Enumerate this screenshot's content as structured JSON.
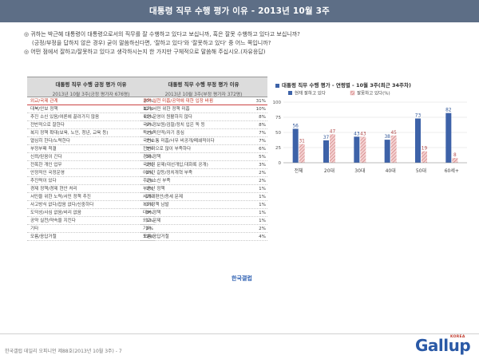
{
  "title": "대통령 직무 수행 평가 이유 - 2013년 10월 3주",
  "question": {
    "line1": "◎ 귀하는 박근혜 대통령이 대통령으로서의 직무를 잘 수행하고 있다고 보십니까, 혹은 잘못 수행하고 있다고 보십니까?",
    "line2": "(긍정/부정을 답하지 않은 경우) 굳이 말씀하신다면, '잘하고 있다'와 '잘못하고 있다' 중 어느 쪽입니까?",
    "line3": "◎ 어떤 점에서 잘하고/잘못하고 있다고 생각하시는지 한 가지만 구체적으로 말씀해 주십시오.(자유응답)"
  },
  "positive": {
    "header": "대통령 직무 수행 긍정 평가 이유",
    "sub": "2013년 10월 3주(긍정 평가자 676명)",
    "rows": [
      {
        "label": "외교/국제 관계",
        "pct": "20%"
      },
      {
        "label": "대북/안보 정책",
        "pct": "12%"
      },
      {
        "label": "추진 소신 있음/여론에 끌려가지 않음",
        "pct": "11%"
      },
      {
        "label": "전반적으로 잘한다",
        "pct": "9%"
      },
      {
        "label": "복지 정책 확대(보육, 노인, 청년, 교육 등)",
        "pct": "7%"
      },
      {
        "label": "열심히 한다/노력한다",
        "pct": "7%"
      },
      {
        "label": "부정부패 척결",
        "pct": "3%"
      },
      {
        "label": "신뢰/믿음이 간다",
        "pct": "3%"
      },
      {
        "label": "전폭한 개인 업무",
        "pct": "2%"
      },
      {
        "label": "안정적인 국정운영",
        "pct": "2%"
      },
      {
        "label": "추진력이 있다",
        "pct": "2%"
      },
      {
        "label": "경제 정책/경제 현안 처리",
        "pct": "2%"
      },
      {
        "label": "서민을 위한 노력/서민 정책 추진",
        "pct": "2%"
      },
      {
        "label": "사고방식 없다/잡음 없다/신중하다",
        "pct": "1%"
      },
      {
        "label": "도덕성/사심 없음/비리 없음",
        "pct": "1%"
      },
      {
        "label": "공약 실천/약속을 지킨다",
        "pct": "1%"
      },
      {
        "label": "기타",
        "pct": "2%"
      },
      {
        "label": "모름/응답거절",
        "pct": "12%"
      }
    ]
  },
  "negative": {
    "header": "대통령 직무 수행 부정 평가 이유",
    "sub": "2013년 10월 3주(부정 평가자 372명)",
    "rows": [
      {
        "label": "공약 실천 미흡/공약에 대한 입장 바뀜",
        "pct": "31%"
      },
      {
        "label": "복지/서민 위한 정책 미흡",
        "pct": "10%"
      },
      {
        "label": "국정 운영이 원활하지 않다",
        "pct": "8%"
      },
      {
        "label": "국가 정보원/검찰/정치 입은 독 등",
        "pct": "8%"
      },
      {
        "label": "독선/독단적/자기 중심",
        "pct": "7%"
      },
      {
        "label": "국민소통 미흡/너무 비공개/폐쇄적이다",
        "pct": "7%"
      },
      {
        "label": "전반적으로 많이 부족하다",
        "pct": "6%"
      },
      {
        "label": "경제 정책",
        "pct": "5%"
      },
      {
        "label": "국정원 문제(대선개입,대화록 공개)",
        "pct": "3%"
      },
      {
        "label": "여야간 갈등/정치개혁 부족",
        "pct": "2%"
      },
      {
        "label": "주관/소신 부족",
        "pct": "2%"
      },
      {
        "label": "부동산 정책",
        "pct": "1%"
      },
      {
        "label": "세계개편안/증세 문제",
        "pct": "1%"
      },
      {
        "label": "복지정책 남발",
        "pct": "1%"
      },
      {
        "label": "대북 정책",
        "pct": "1%"
      },
      {
        "label": "외교 문제",
        "pct": "1%"
      },
      {
        "label": "기타",
        "pct": "2%"
      },
      {
        "label": "모름/응답거절",
        "pct": "4%"
      }
    ]
  },
  "brand_small": "한국갤럽",
  "footer": "한국갤럽 데일리 오피니언 제88호(2013년 10월 3주) - 7",
  "logo": {
    "text": "Gallup",
    "korea": "KOREA"
  },
  "chart_data": {
    "type": "bar",
    "title": "대통령 직무 수행 평가 - 연령별 - 10월 3주(최근 34주차)",
    "categories": [
      "전체",
      "20대",
      "30대",
      "40대",
      "50대",
      "60세+"
    ],
    "series": [
      {
        "name": "현재 잘하고 있다",
        "values": [
          56,
          37,
          43,
          38,
          73,
          82
        ],
        "color": "#3d62a8"
      },
      {
        "name": "잘못하고 있다(%)",
        "values": [
          31,
          47,
          43,
          45,
          19,
          8
        ],
        "color": "#d88888"
      }
    ],
    "ylim": [
      0,
      100
    ],
    "yticks": [
      0,
      25,
      50,
      75,
      100
    ],
    "legend": "top"
  }
}
